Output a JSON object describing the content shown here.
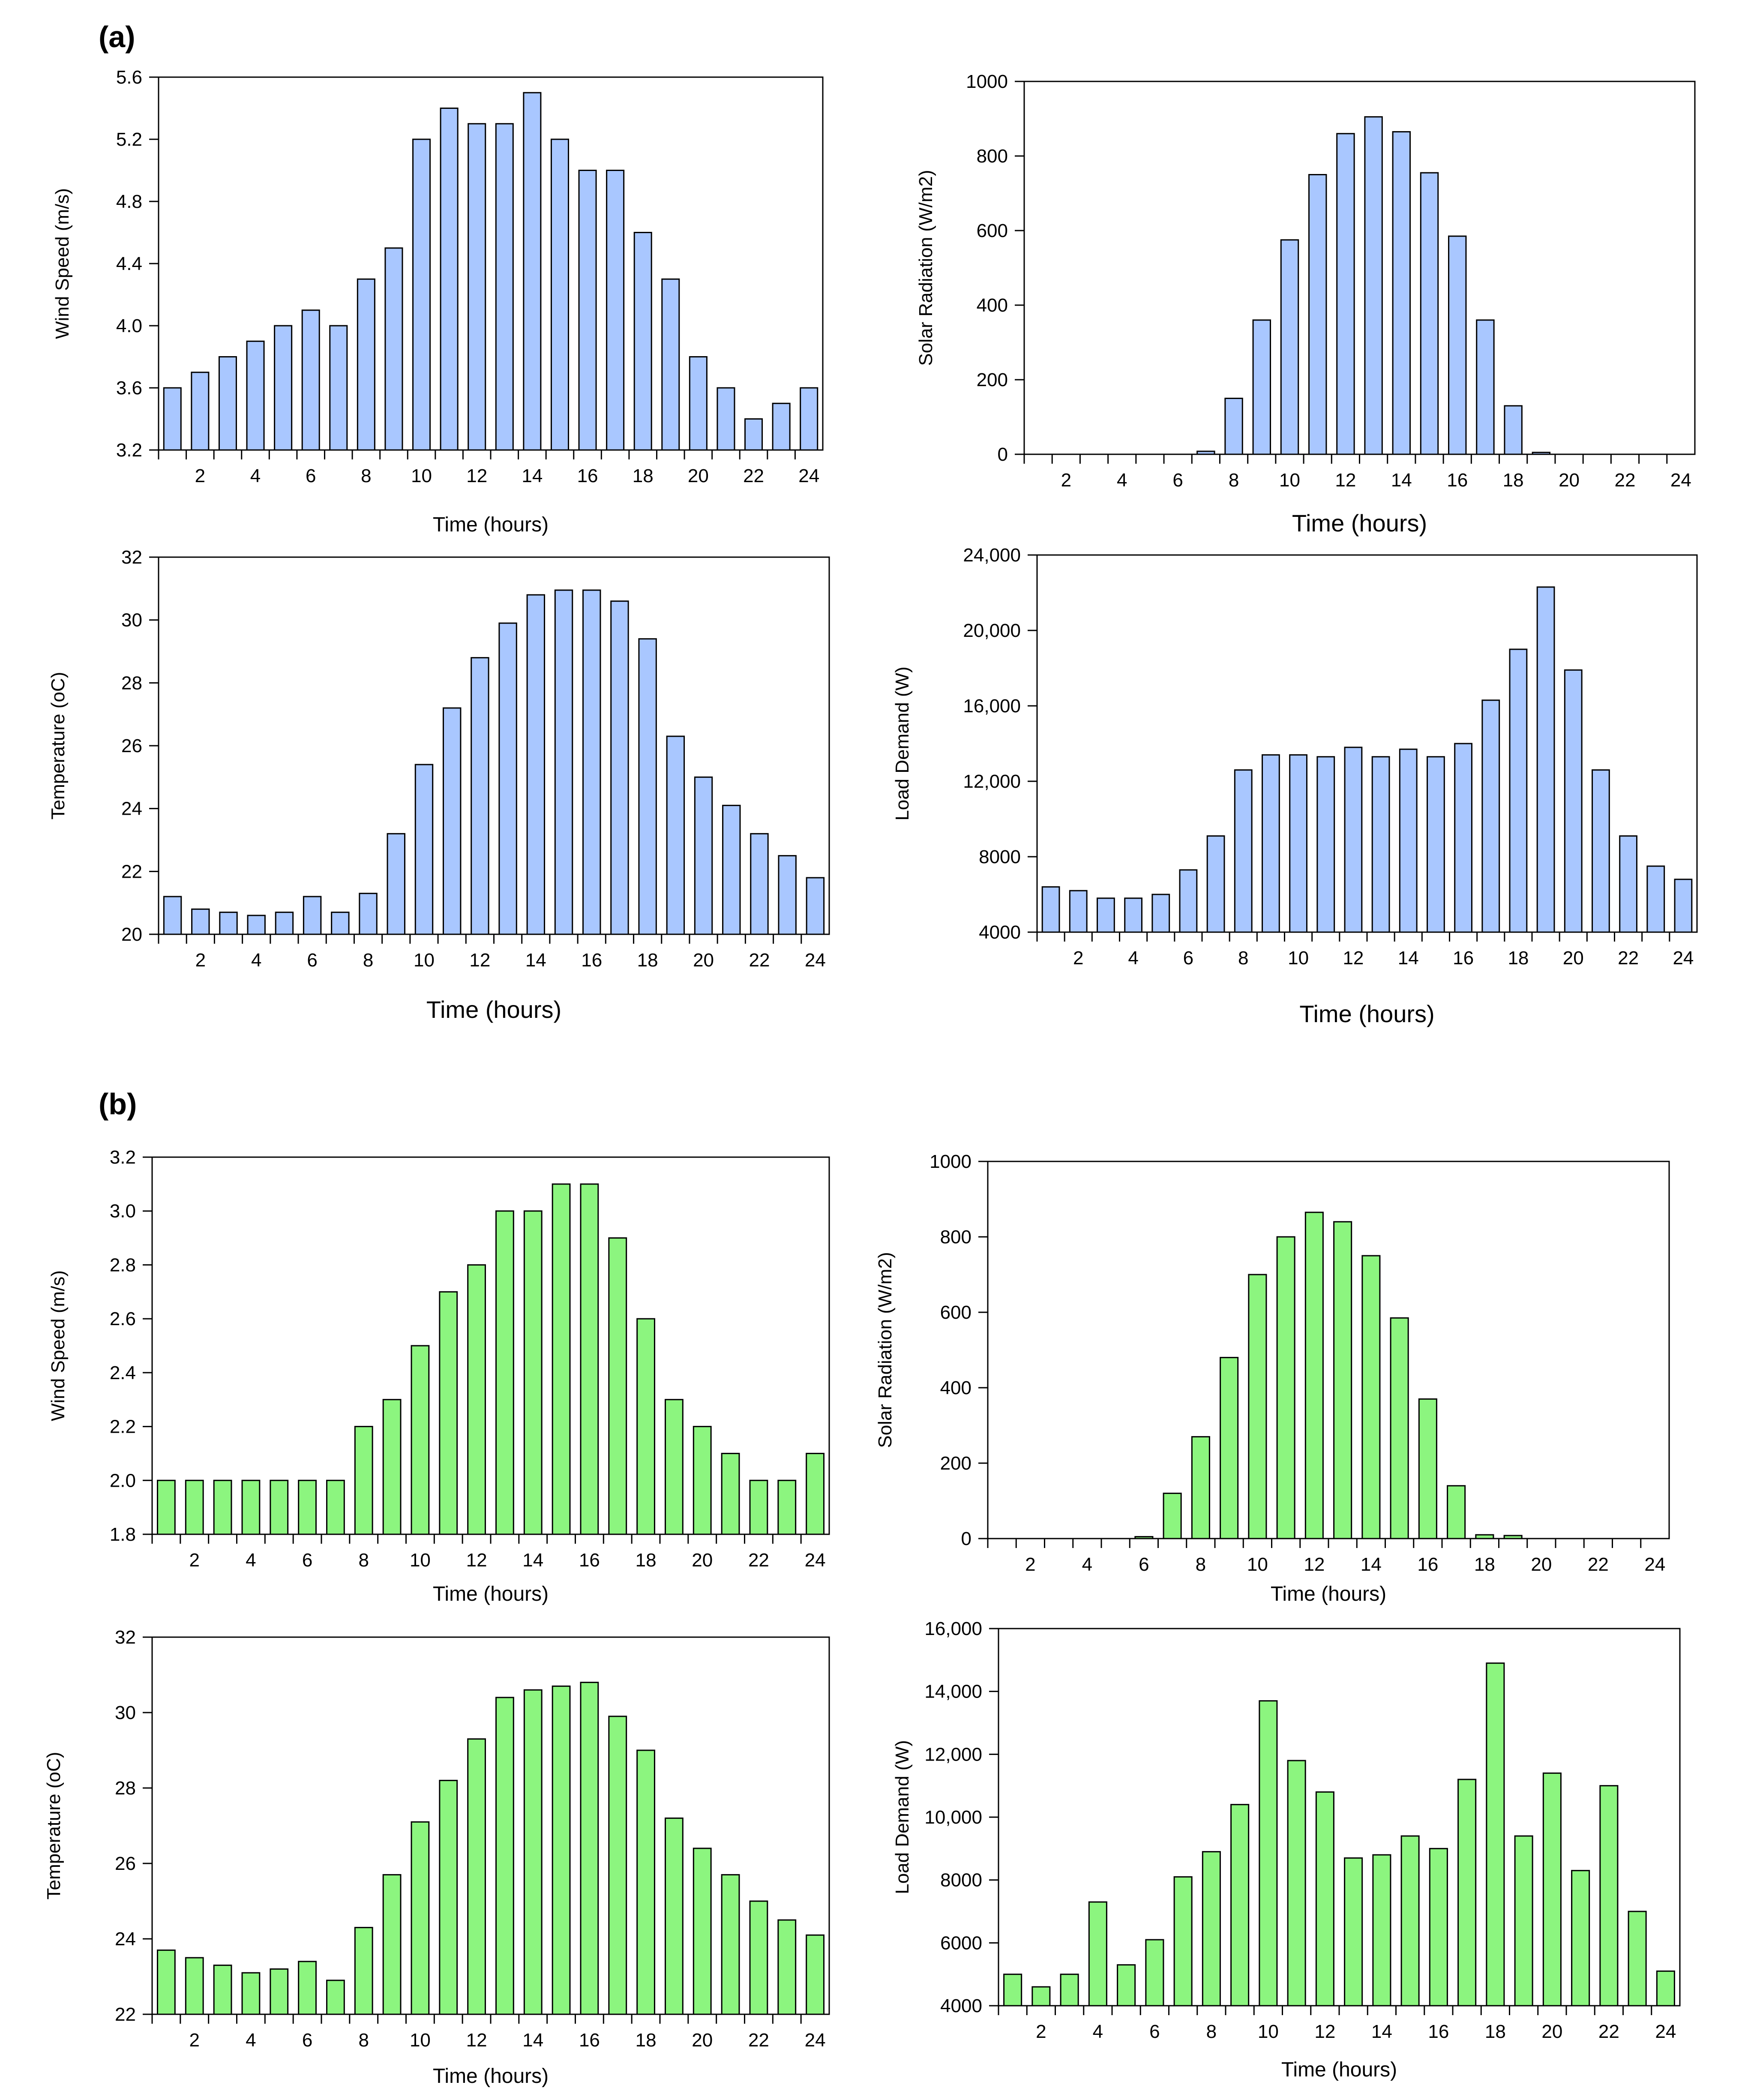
{
  "figure": {
    "panel_labels": [
      "(a)",
      "(b)"
    ]
  },
  "colors": {
    "panel_a_bar": "#a9c7ff",
    "panel_b_bar": "#8cf57f",
    "stroke": "#000000"
  },
  "chart_data": [
    {
      "id": "a_wind",
      "type": "bar",
      "panel": "(a)",
      "title": "",
      "xlabel": "Time (hours)",
      "ylabel": "Wind Speed (m/s)",
      "categories": [
        1,
        2,
        3,
        4,
        5,
        6,
        7,
        8,
        9,
        10,
        11,
        12,
        13,
        14,
        15,
        16,
        17,
        18,
        19,
        20,
        21,
        22,
        23,
        24
      ],
      "xticks": [
        "2",
        "4",
        "6",
        "8",
        "10",
        "12",
        "14",
        "16",
        "18",
        "20",
        "22",
        "24"
      ],
      "values": [
        3.6,
        3.7,
        3.8,
        3.9,
        4.0,
        4.1,
        4.0,
        4.3,
        4.5,
        5.2,
        5.4,
        5.3,
        5.3,
        5.5,
        5.2,
        5.0,
        5.0,
        4.6,
        4.3,
        3.8,
        3.6,
        3.4,
        3.5,
        3.6
      ],
      "ylim": [
        3.2,
        5.6
      ],
      "yticks": [
        3.2,
        3.6,
        4.0,
        4.4,
        4.8,
        5.2,
        5.6
      ],
      "ytick_labels": [
        "3.2",
        "3.6",
        "4.0",
        "4.4",
        "4.8",
        "5.2",
        "5.6"
      ]
    },
    {
      "id": "a_solar",
      "type": "bar",
      "panel": "(a)",
      "title": "",
      "xlabel": "Time (hours)",
      "ylabel": "Solar Radiation (W/m2)",
      "categories": [
        1,
        2,
        3,
        4,
        5,
        6,
        7,
        8,
        9,
        10,
        11,
        12,
        13,
        14,
        15,
        16,
        17,
        18,
        19,
        20,
        21,
        22,
        23,
        24
      ],
      "xticks": [
        "2",
        "4",
        "6",
        "8",
        "10",
        "12",
        "14",
        "16",
        "18",
        "20",
        "22",
        "24"
      ],
      "values": [
        0,
        0,
        0,
        0,
        0,
        0,
        8,
        150,
        360,
        575,
        750,
        860,
        905,
        865,
        755,
        585,
        360,
        130,
        5,
        0,
        0,
        0,
        0,
        0
      ],
      "ylim": [
        0,
        1000
      ],
      "yticks": [
        0,
        200,
        400,
        600,
        800,
        1000
      ],
      "ytick_labels": [
        "0",
        "200",
        "400",
        "600",
        "800",
        "1000"
      ]
    },
    {
      "id": "a_temp",
      "type": "bar",
      "panel": "(a)",
      "title": "",
      "xlabel": "Time (hours)",
      "ylabel": "Temperature (oC)",
      "categories": [
        1,
        2,
        3,
        4,
        5,
        6,
        7,
        8,
        9,
        10,
        11,
        12,
        13,
        14,
        15,
        16,
        17,
        18,
        19,
        20,
        21,
        22,
        23,
        24
      ],
      "xticks": [
        "2",
        "4",
        "6",
        "8",
        "10",
        "12",
        "14",
        "16",
        "18",
        "20",
        "22",
        "24"
      ],
      "values": [
        21.2,
        20.8,
        20.7,
        20.6,
        20.7,
        21.2,
        20.7,
        21.3,
        23.2,
        25.4,
        27.2,
        28.8,
        29.9,
        30.8,
        30.95,
        30.95,
        30.6,
        29.4,
        26.3,
        25.0,
        24.1,
        23.2,
        22.5,
        21.8
      ],
      "ylim": [
        20,
        32
      ],
      "yticks": [
        20,
        22,
        24,
        26,
        28,
        30,
        32
      ],
      "ytick_labels": [
        "20",
        "22",
        "24",
        "26",
        "28",
        "30",
        "32"
      ]
    },
    {
      "id": "a_load",
      "type": "bar",
      "panel": "(a)",
      "title": "",
      "xlabel": "Time (hours)",
      "ylabel": "Load Demand (W)",
      "categories": [
        1,
        2,
        3,
        4,
        5,
        6,
        7,
        8,
        9,
        10,
        11,
        12,
        13,
        14,
        15,
        16,
        17,
        18,
        19,
        20,
        21,
        22,
        23,
        24
      ],
      "xticks": [
        "2",
        "4",
        "6",
        "8",
        "10",
        "12",
        "14",
        "16",
        "18",
        "20",
        "22",
        "24"
      ],
      "values": [
        6400,
        6200,
        5800,
        5800,
        6000,
        7300,
        9100,
        12600,
        13400,
        13400,
        13300,
        13800,
        13300,
        13700,
        13300,
        14000,
        16300,
        19000,
        22300,
        17900,
        12600,
        9100,
        7500,
        6800
      ],
      "ylim": [
        4000,
        24000
      ],
      "yticks": [
        4000,
        8000,
        12000,
        16000,
        20000,
        24000
      ],
      "ytick_labels": [
        "4000",
        "8000",
        "12,000",
        "16,000",
        "20,000",
        "24,000"
      ]
    },
    {
      "id": "b_wind",
      "type": "bar",
      "panel": "(b)",
      "title": "",
      "xlabel": "Time (hours)",
      "ylabel": "Wind Speed (m/s)",
      "categories": [
        1,
        2,
        3,
        4,
        5,
        6,
        7,
        8,
        9,
        10,
        11,
        12,
        13,
        14,
        15,
        16,
        17,
        18,
        19,
        20,
        21,
        22,
        23,
        24
      ],
      "xticks": [
        "2",
        "4",
        "6",
        "8",
        "10",
        "12",
        "14",
        "16",
        "18",
        "20",
        "22",
        "24"
      ],
      "values": [
        2.0,
        2.0,
        2.0,
        2.0,
        2.0,
        2.0,
        2.0,
        2.2,
        2.3,
        2.5,
        2.7,
        2.8,
        3.0,
        3.0,
        3.1,
        3.1,
        2.9,
        2.6,
        2.3,
        2.2,
        2.1,
        2.0,
        2.0,
        2.1
      ],
      "ylim": [
        1.8,
        3.2
      ],
      "yticks": [
        1.8,
        2.0,
        2.2,
        2.4,
        2.6,
        2.8,
        3.0,
        3.2
      ],
      "ytick_labels": [
        "1.8",
        "2.0",
        "2.2",
        "2.4",
        "2.6",
        "2.8",
        "3.0",
        "3.2"
      ]
    },
    {
      "id": "b_solar",
      "type": "bar",
      "panel": "(b)",
      "title": "",
      "xlabel": "Time (hours)",
      "ylabel": "Solar Radiation (W/m2)",
      "categories": [
        1,
        2,
        3,
        4,
        5,
        6,
        7,
        8,
        9,
        10,
        11,
        12,
        13,
        14,
        15,
        16,
        17,
        18,
        19,
        20,
        21,
        22,
        23,
        24
      ],
      "xticks": [
        "2",
        "4",
        "6",
        "8",
        "10",
        "12",
        "14",
        "16",
        "18",
        "20",
        "22",
        "24"
      ],
      "values": [
        0,
        0,
        0,
        0,
        0,
        5,
        120,
        270,
        480,
        700,
        800,
        865,
        840,
        750,
        585,
        370,
        140,
        10,
        8,
        0,
        0,
        0,
        0,
        0
      ],
      "ylim": [
        0,
        1000
      ],
      "yticks": [
        0,
        200,
        400,
        600,
        800,
        1000
      ],
      "ytick_labels": [
        "0",
        "200",
        "400",
        "600",
        "800",
        "1000"
      ]
    },
    {
      "id": "b_temp",
      "type": "bar",
      "panel": "(b)",
      "title": "",
      "xlabel": "Time (hours)",
      "ylabel": "Temperature (oC)",
      "categories": [
        1,
        2,
        3,
        4,
        5,
        6,
        7,
        8,
        9,
        10,
        11,
        12,
        13,
        14,
        15,
        16,
        17,
        18,
        19,
        20,
        21,
        22,
        23,
        24
      ],
      "xticks": [
        "2",
        "4",
        "6",
        "8",
        "10",
        "12",
        "14",
        "16",
        "18",
        "20",
        "22",
        "24"
      ],
      "values": [
        23.7,
        23.5,
        23.3,
        23.1,
        23.2,
        23.4,
        22.9,
        24.3,
        25.7,
        27.1,
        28.2,
        29.3,
        30.4,
        30.6,
        30.7,
        30.8,
        29.9,
        29.0,
        27.2,
        26.4,
        25.7,
        25.0,
        24.5,
        24.1
      ],
      "ylim": [
        22,
        32
      ],
      "yticks": [
        22,
        24,
        26,
        28,
        30,
        32
      ],
      "ytick_labels": [
        "22",
        "24",
        "26",
        "28",
        "30",
        "32"
      ]
    },
    {
      "id": "b_load",
      "type": "bar",
      "panel": "(b)",
      "title": "",
      "xlabel": "Time (hours)",
      "ylabel": "Load Demand (W)",
      "categories": [
        1,
        2,
        3,
        4,
        5,
        6,
        7,
        8,
        9,
        10,
        11,
        12,
        13,
        14,
        15,
        16,
        17,
        18,
        19,
        20,
        21,
        22,
        23,
        24
      ],
      "xticks": [
        "2",
        "4",
        "6",
        "8",
        "10",
        "12",
        "14",
        "16",
        "18",
        "20",
        "22",
        "24"
      ],
      "values": [
        5000,
        4600,
        5000,
        7300,
        5300,
        6100,
        8100,
        8900,
        10400,
        13700,
        11800,
        10800,
        8700,
        8800,
        9400,
        9000,
        11200,
        14900,
        9400,
        11400,
        8300,
        11000,
        7000,
        5100
      ],
      "ylim": [
        4000,
        16000
      ],
      "yticks": [
        4000,
        6000,
        8000,
        10000,
        12000,
        14000,
        16000
      ],
      "ytick_labels": [
        "4000",
        "6000",
        "8000",
        "10,000",
        "12,000",
        "14,000",
        "16,000"
      ]
    }
  ]
}
